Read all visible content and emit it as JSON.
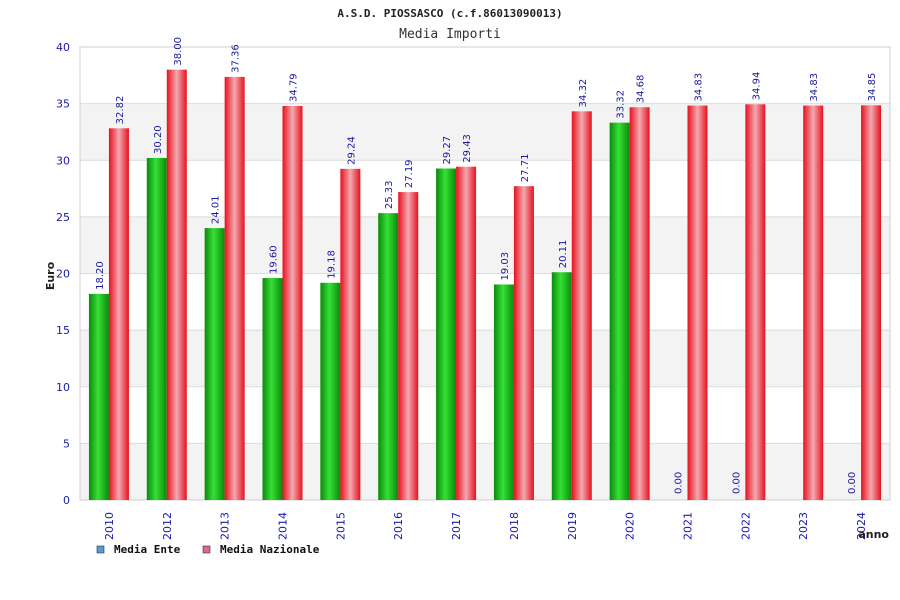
{
  "chart_data": {
    "type": "bar",
    "title": "A.S.D. PIOSSASCO (c.f.86013090013)",
    "subtitle": "Media Importi",
    "ylabel": "Euro",
    "xlabel": "anno",
    "ylim": [
      0,
      40
    ],
    "yticks": [
      0,
      5,
      10,
      15,
      20,
      25,
      30,
      35,
      40
    ],
    "grid": true,
    "legend_position": "bottom-left",
    "categories": [
      "2010",
      "2012",
      "2013",
      "2014",
      "2015",
      "2016",
      "2017",
      "2018",
      "2019",
      "2020",
      "2021",
      "2022",
      "2023",
      "2024"
    ],
    "series": [
      {
        "name": "Media Ente",
        "legend_color": "#5599dd",
        "bar_color": "#16b816",
        "values": [
          18.2,
          30.2,
          24.01,
          19.6,
          19.18,
          25.33,
          29.27,
          19.03,
          20.11,
          33.32,
          0,
          0,
          null,
          0
        ],
        "labels": [
          "18.20",
          "30.20",
          "24.01",
          "19.60",
          "19.18",
          "25.33",
          "29.27",
          "19.03",
          "20.11",
          "33.32",
          "0.00",
          "0.00",
          "",
          "0.00"
        ]
      },
      {
        "name": "Media Nazionale",
        "legend_color": "#dd6699",
        "bar_color": "#e81a2a",
        "values": [
          32.82,
          38.0,
          37.36,
          34.79,
          29.24,
          27.19,
          29.43,
          27.71,
          34.32,
          34.68,
          34.83,
          34.94,
          34.83,
          34.85
        ],
        "labels": [
          "32.82",
          "38.00",
          "37.36",
          "34.79",
          "29.24",
          "27.19",
          "29.43",
          "27.71",
          "34.32",
          "34.68",
          "34.83",
          "34.94",
          "34.83",
          "34.85"
        ]
      }
    ]
  }
}
